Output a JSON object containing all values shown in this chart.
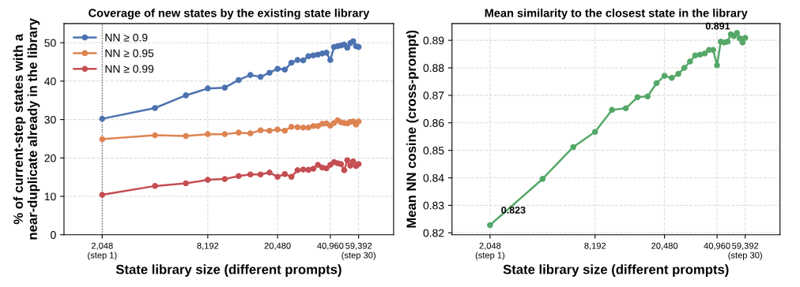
{
  "chart_data": [
    {
      "type": "line",
      "title": "Coverage of new states by the existing state library",
      "xlabel": "State library size (different prompts)",
      "ylabel": "% of current-step states with a\nnear-duplicate already in the library",
      "log": "x",
      "grid": true,
      "legend": "top left",
      "marker": "circle",
      "line_style": "solid",
      "x": [
        2048,
        4096,
        6144,
        8192,
        10240,
        12288,
        14336,
        16384,
        18432,
        20480,
        22528,
        24576,
        26624,
        28672,
        30720,
        32768,
        34816,
        36864,
        38912,
        40960,
        43008,
        45056,
        47104,
        49152,
        51200,
        53248,
        55296,
        57344,
        59392
      ],
      "xlim": [
        1240,
        94000
      ],
      "xticks": [
        {
          "value": 2048,
          "label": "2,048\n(step 1)"
        },
        {
          "value": 8192,
          "label": "8,192"
        },
        {
          "value": 20480,
          "label": "20,480"
        },
        {
          "value": 40960,
          "label": "40,960"
        },
        {
          "value": 59392,
          "label": "59,392\n(step 30)"
        }
      ],
      "ylim": [
        0,
        55
      ],
      "yticks": [
        0,
        10,
        20,
        30,
        40,
        50
      ],
      "ref_lines": [
        {
          "axis": "x",
          "value": 2048,
          "color": "#555555",
          "line_style": "dotted"
        }
      ],
      "series": [
        {
          "name": "NN ≥ 0.9",
          "color": "#4c72b0",
          "values": [
            30.2,
            33.0,
            36.3,
            38.1,
            38.3,
            40.3,
            41.6,
            41.1,
            42.2,
            43.2,
            43.0,
            44.8,
            45.5,
            45.4,
            46.5,
            46.7,
            46.9,
            47.2,
            47.4,
            45.5,
            48.9,
            49.1,
            49.3,
            49.5,
            48.7,
            49.9,
            50.4,
            49.1,
            48.9
          ]
        },
        {
          "name": "NN ≥ 0.95",
          "color": "#dd8452",
          "values": [
            24.9,
            25.9,
            25.7,
            26.2,
            26.2,
            26.6,
            26.4,
            27.2,
            27.1,
            27.4,
            27.1,
            28.1,
            28.0,
            27.9,
            27.9,
            28.3,
            28.3,
            28.9,
            29.0,
            28.4,
            29.1,
            29.8,
            29.3,
            29.1,
            29.0,
            29.4,
            29.5,
            28.7,
            29.5
          ]
        },
        {
          "name": "NN ≥ 0.99",
          "color": "#c44e52",
          "values": [
            10.4,
            12.7,
            13.4,
            14.3,
            14.5,
            15.3,
            15.7,
            15.7,
            16.2,
            15.1,
            15.8,
            15.1,
            16.8,
            17.0,
            16.9,
            17.2,
            18.2,
            17.5,
            17.3,
            18.2,
            18.9,
            18.6,
            18.4,
            16.8,
            19.4,
            18.0,
            19.1,
            17.9,
            18.4
          ]
        }
      ]
    },
    {
      "type": "line",
      "title": "Mean similarity to the closest state in the library",
      "xlabel": "State library size (different prompts)",
      "ylabel": "Mean NN cosine (cross-prompt)",
      "log": "x",
      "grid": true,
      "marker": "circle",
      "line_style": "solid",
      "x": [
        2048,
        4096,
        6144,
        8192,
        10240,
        12288,
        14336,
        16384,
        18432,
        20480,
        22528,
        24576,
        26624,
        28672,
        30720,
        32768,
        34816,
        36864,
        38912,
        40960,
        43008,
        45056,
        47104,
        49152,
        51200,
        53248,
        55296,
        57344,
        59392
      ],
      "xlim": [
        1240,
        94000
      ],
      "xticks": [
        {
          "value": 2048,
          "label": "2,048\n(step 1)"
        },
        {
          "value": 8192,
          "label": "8,192"
        },
        {
          "value": 20480,
          "label": "20,480"
        },
        {
          "value": 40960,
          "label": "40,960"
        },
        {
          "value": 59392,
          "label": "59,392\n(step 30)"
        }
      ],
      "ylim": [
        0.8193,
        0.8961
      ],
      "yticks": [
        0.82,
        0.83,
        0.84,
        0.85,
        0.86,
        0.87,
        0.88,
        0.89
      ],
      "annotations": [
        {
          "text": "0.823",
          "x": 2048,
          "y": 0.8228
        },
        {
          "text": "0.891",
          "x": 59392,
          "y": 0.8909
        }
      ],
      "series": [
        {
          "color": "#55a868",
          "values": [
            0.8228,
            0.8396,
            0.8512,
            0.8567,
            0.8647,
            0.8653,
            0.8693,
            0.8696,
            0.8744,
            0.8771,
            0.8763,
            0.8778,
            0.88,
            0.8823,
            0.8845,
            0.8848,
            0.8852,
            0.8865,
            0.8865,
            0.8809,
            0.8895,
            0.8892,
            0.8895,
            0.8922,
            0.8915,
            0.8927,
            0.8907,
            0.8892,
            0.8909
          ]
        }
      ]
    }
  ]
}
